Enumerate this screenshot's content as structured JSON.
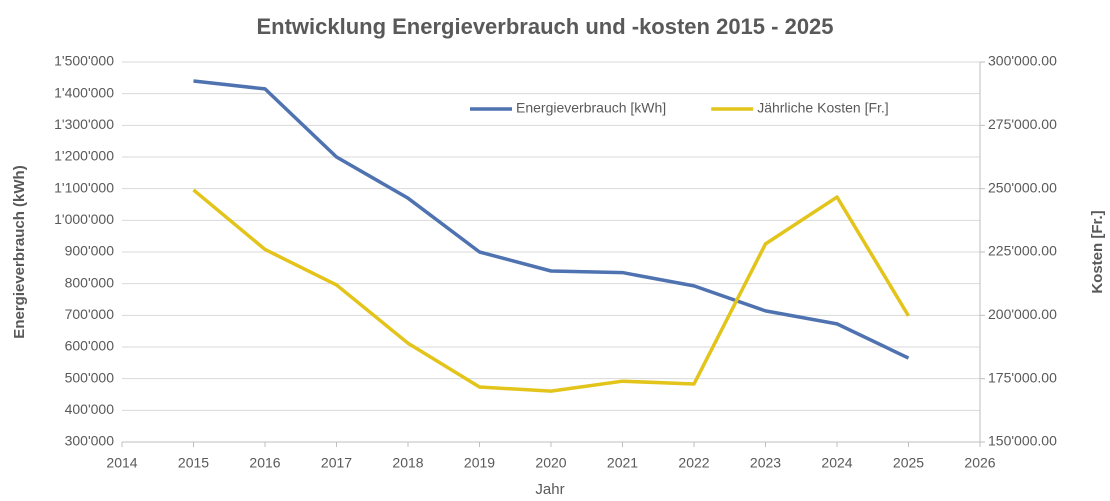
{
  "chart_data": {
    "type": "line",
    "title": "Entwicklung Energieverbrauch und -kosten 2015 - 2025",
    "xlabel": "Jahr",
    "ylabel": "Energieverbrauch (kWh)",
    "y2label": "Kosten [Fr.]",
    "x": [
      2015,
      2016,
      2017,
      2018,
      2019,
      2020,
      2021,
      2022,
      2023,
      2024,
      2025
    ],
    "series": [
      {
        "name": "Energieverbrauch [kWh]",
        "color": "#4f72b0",
        "values": [
          1440000,
          1415000,
          1200000,
          1070000,
          900000,
          840000,
          835000,
          793000,
          714000,
          673000,
          565000
        ]
      },
      {
        "name": "Jährliche Kosten [Fr.]",
        "color": "#e3c41a",
        "axis": "y2",
        "values": [
          249500,
          226000,
          212000,
          189000,
          171700,
          170100,
          174000,
          172900,
          228200,
          246700,
          199800
        ]
      }
    ],
    "xlim": [
      2014,
      2026
    ],
    "xticks": [
      2014,
      2015,
      2016,
      2017,
      2018,
      2019,
      2020,
      2021,
      2022,
      2023,
      2024,
      2025,
      2026
    ],
    "ylim": [
      300000,
      1500000
    ],
    "yticks": [
      {
        "value": 300000,
        "label": "300'000"
      },
      {
        "value": 400000,
        "label": "400'000"
      },
      {
        "value": 500000,
        "label": "500'000"
      },
      {
        "value": 600000,
        "label": "600'000"
      },
      {
        "value": 700000,
        "label": "700'000"
      },
      {
        "value": 800000,
        "label": "800'000"
      },
      {
        "value": 900000,
        "label": "900'000"
      },
      {
        "value": 1000000,
        "label": "1'000'000"
      },
      {
        "value": 1100000,
        "label": "1'100'000"
      },
      {
        "value": 1200000,
        "label": "1'200'000"
      },
      {
        "value": 1300000,
        "label": "1'300'000"
      },
      {
        "value": 1400000,
        "label": "1'400'000"
      },
      {
        "value": 1500000,
        "label": "1'500'000"
      }
    ],
    "y2lim": [
      150000,
      300000
    ],
    "y2ticks": [
      {
        "value": 150000,
        "label": "150'000.00"
      },
      {
        "value": 175000,
        "label": "175'000.00"
      },
      {
        "value": 200000,
        "label": "200'000.00"
      },
      {
        "value": 225000,
        "label": "225'000.00"
      },
      {
        "value": 250000,
        "label": "250'000.00"
      },
      {
        "value": 275000,
        "label": "275'000.00"
      },
      {
        "value": 300000,
        "label": "300'000.00"
      }
    ],
    "grid": true,
    "legend": "top-right"
  }
}
